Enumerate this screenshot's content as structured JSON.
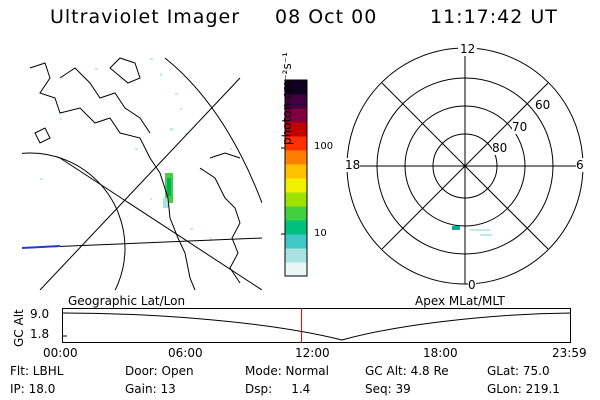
{
  "header": {
    "instrument": "Ultraviolet Imager",
    "date": "08 Oct 00",
    "time": "11:17:42 UT"
  },
  "colorbar": {
    "unit_label": "photon cm⁻²s⁻¹",
    "ticks": [
      "100",
      "10"
    ],
    "colors": [
      "#e8f6f6",
      "#a8e2e2",
      "#40c8c8",
      "#00c080",
      "#40d040",
      "#a0e000",
      "#f0f000",
      "#ffc000",
      "#ff8000",
      "#ff3000",
      "#c00000",
      "#800040",
      "#400040",
      "#100020"
    ]
  },
  "map_panel": {
    "label": "Geographic Lat/Lon"
  },
  "polar_panel": {
    "label": "Apex MLat/MLT",
    "mlt_labels": {
      "top": "12",
      "left": "18",
      "right": "6",
      "bottom": "0"
    },
    "lat_labels": [
      "60",
      "70",
      "80"
    ]
  },
  "altitude_plot": {
    "ylabel": "GC Alt",
    "yticks": [
      "9.0",
      "1.8"
    ],
    "xticks": [
      "00:00",
      "06:00",
      "12:00",
      "18:00",
      "23:59"
    ],
    "current_time_marker": "11:17:42",
    "marker_color": "#e00000"
  },
  "status": {
    "row1": {
      "flt": "Flt: LBHL",
      "door": "Door: Open",
      "mode": "Mode: Normal",
      "gc_alt": "GC Alt: 4.8 Re",
      "glat": "GLat:  75.0"
    },
    "row2": {
      "ip": "IP: 18.0",
      "gain": "Gain: 13",
      "dsp": "Dsp:     1.4",
      "seq": "Seq: 39",
      "glon": "GLon: 219.1"
    }
  }
}
